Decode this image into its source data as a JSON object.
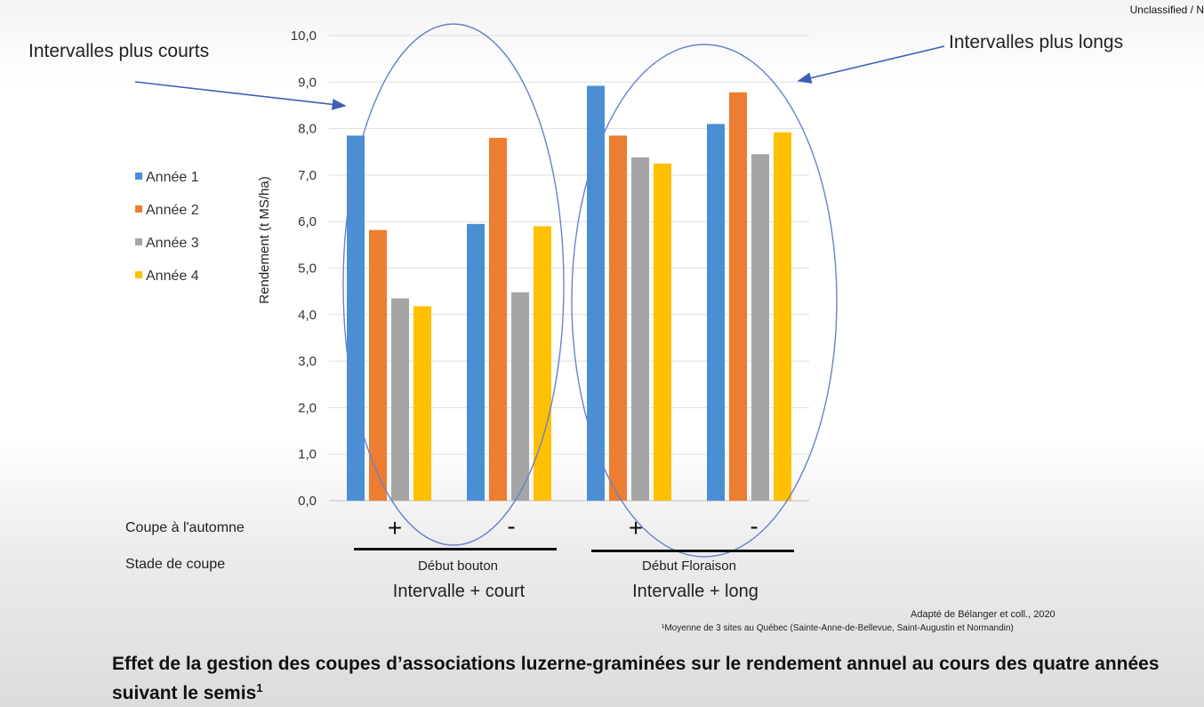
{
  "header": {
    "classification": "Unclassified / N"
  },
  "annotations": {
    "left": "Intervalles plus courts",
    "right": "Intervalles plus longs"
  },
  "chart_data": {
    "type": "bar",
    "ylabel": "Rendement (t MS/ha)",
    "ylim": [
      0,
      10
    ],
    "yticks": [
      "0,0",
      "1,0",
      "2,0",
      "3,0",
      "4,0",
      "5,0",
      "6,0",
      "7,0",
      "8,0",
      "9,0",
      "10,0"
    ],
    "grid": true,
    "legend_position": "left",
    "categories": [
      "+",
      "-",
      "+",
      "-"
    ],
    "series": [
      {
        "name": "Année 1",
        "color": "#4a8fd4",
        "values": [
          7.85,
          5.95,
          8.92,
          8.1
        ]
      },
      {
        "name": "Année 2",
        "color": "#ed7d31",
        "values": [
          5.82,
          7.8,
          7.85,
          8.78
        ]
      },
      {
        "name": "Année 3",
        "color": "#a5a5a5",
        "values": [
          4.35,
          4.48,
          7.38,
          7.45
        ]
      },
      {
        "name": "Année 4",
        "color": "#ffc000",
        "values": [
          4.18,
          5.9,
          7.25,
          7.92
        ]
      }
    ]
  },
  "axis_rows": {
    "row1_label": "Coupe à l'automne",
    "row2_label": "Stade de coupe",
    "marks": [
      "+",
      "-",
      "+",
      "-"
    ],
    "stages": [
      "Début bouton",
      "Début Floraison"
    ],
    "intervals": [
      "Intervalle + court",
      "Intervalle + long"
    ]
  },
  "source": {
    "adapted": "Adapté de Bélanger et coll., 2020",
    "footnote": "¹Moyenne de 3 sites au Québec (Sainte-Anne-de-Bellevue, Saint-Augustin et Normandin)"
  },
  "caption": {
    "text": "Effet de la gestion des coupes d’associations luzerne-graminées sur le rendement annuel au cours des quatre années suivant le semis",
    "superscript": "1"
  }
}
